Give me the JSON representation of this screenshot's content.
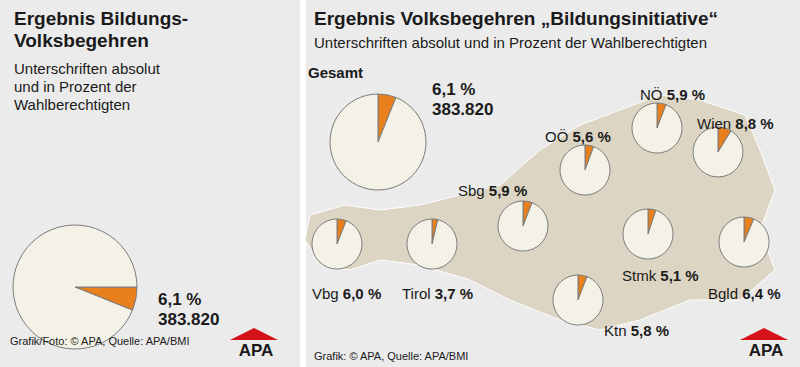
{
  "chart_data": [
    {
      "type": "pie",
      "title": "Ergebnis Bildungs-Volksbegehren",
      "subtitle": "Unterschriften absolut und in Prozent der Wahlberechtigten",
      "source": "Grafik/Foto: © APA, Quelle: APA/BMI",
      "logo": "APA",
      "colors": [
        "#e8801e",
        "#f4f2e6"
      ],
      "pies": [
        {
          "values": [
            6.1,
            93.9
          ],
          "value_labels": [
            "6,1 %",
            null
          ],
          "count": {
            "value": 383820,
            "label": "383.820"
          }
        }
      ]
    },
    {
      "type": "pie",
      "title": "Ergebnis Volksbegehren „Bildungsinitiative“",
      "subtitle": "Unterschriften absolut und in Prozent der Wahlberechtigten",
      "source": "Grafik: © APA, Quelle: APA/BMI",
      "logo": "APA",
      "colors": [
        "#e8801e",
        "#f4f2e6"
      ],
      "pies": [
        {
          "label": "Gesamt",
          "values": [
            6.1,
            93.9
          ],
          "value_labels": [
            "6,1 %",
            null
          ],
          "count": {
            "value": 383820,
            "label": "383.820"
          }
        },
        {
          "label": "OÖ",
          "values": [
            5.6,
            94.4
          ],
          "value_labels": [
            "5,6 %",
            null
          ]
        },
        {
          "label": "NÖ",
          "values": [
            5.9,
            94.1
          ],
          "value_labels": [
            "5,9 %",
            null
          ]
        },
        {
          "label": "Wien",
          "values": [
            8.8,
            91.2
          ],
          "value_labels": [
            "8,8 %",
            null
          ]
        },
        {
          "label": "Sbg",
          "values": [
            5.9,
            94.1
          ],
          "value_labels": [
            "5,9 %",
            null
          ]
        },
        {
          "label": "Vbg",
          "values": [
            6.0,
            94.0
          ],
          "value_labels": [
            "6,0 %",
            null
          ]
        },
        {
          "label": "Tirol",
          "values": [
            3.7,
            96.3
          ],
          "value_labels": [
            "3,7 %",
            null
          ]
        },
        {
          "label": "Stmk",
          "values": [
            5.1,
            94.9
          ],
          "value_labels": [
            "5,1 %",
            null
          ]
        },
        {
          "label": "Bgld",
          "values": [
            6.4,
            93.6
          ],
          "value_labels": [
            "6,4 %",
            null
          ]
        },
        {
          "label": "Ktn",
          "values": [
            5.8,
            94.2
          ],
          "value_labels": [
            "5,8 %",
            null
          ]
        }
      ]
    }
  ]
}
